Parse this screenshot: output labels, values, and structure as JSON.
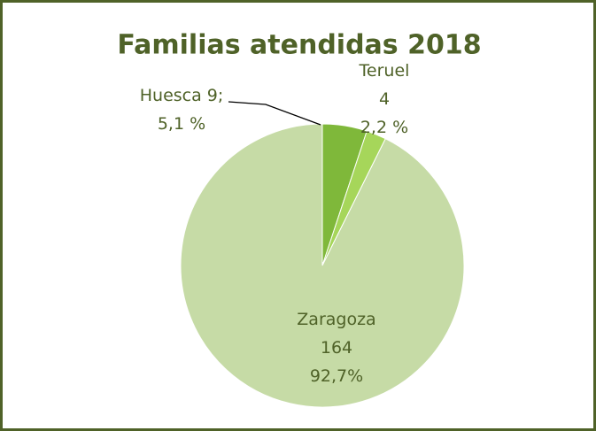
{
  "chart_data": {
    "type": "pie",
    "title": "Familias atendidas 2018",
    "categories": [
      "Huesca",
      "Teruel",
      "Zaragoza"
    ],
    "values": [
      9,
      4,
      164
    ],
    "value_labels": [
      "9;",
      "4",
      "164"
    ],
    "percent_labels": [
      "5,1 %",
      "2,2 %",
      "92,7%"
    ],
    "colors": [
      "#7fb83a",
      "#a6d65a",
      "#c6dba6"
    ]
  }
}
